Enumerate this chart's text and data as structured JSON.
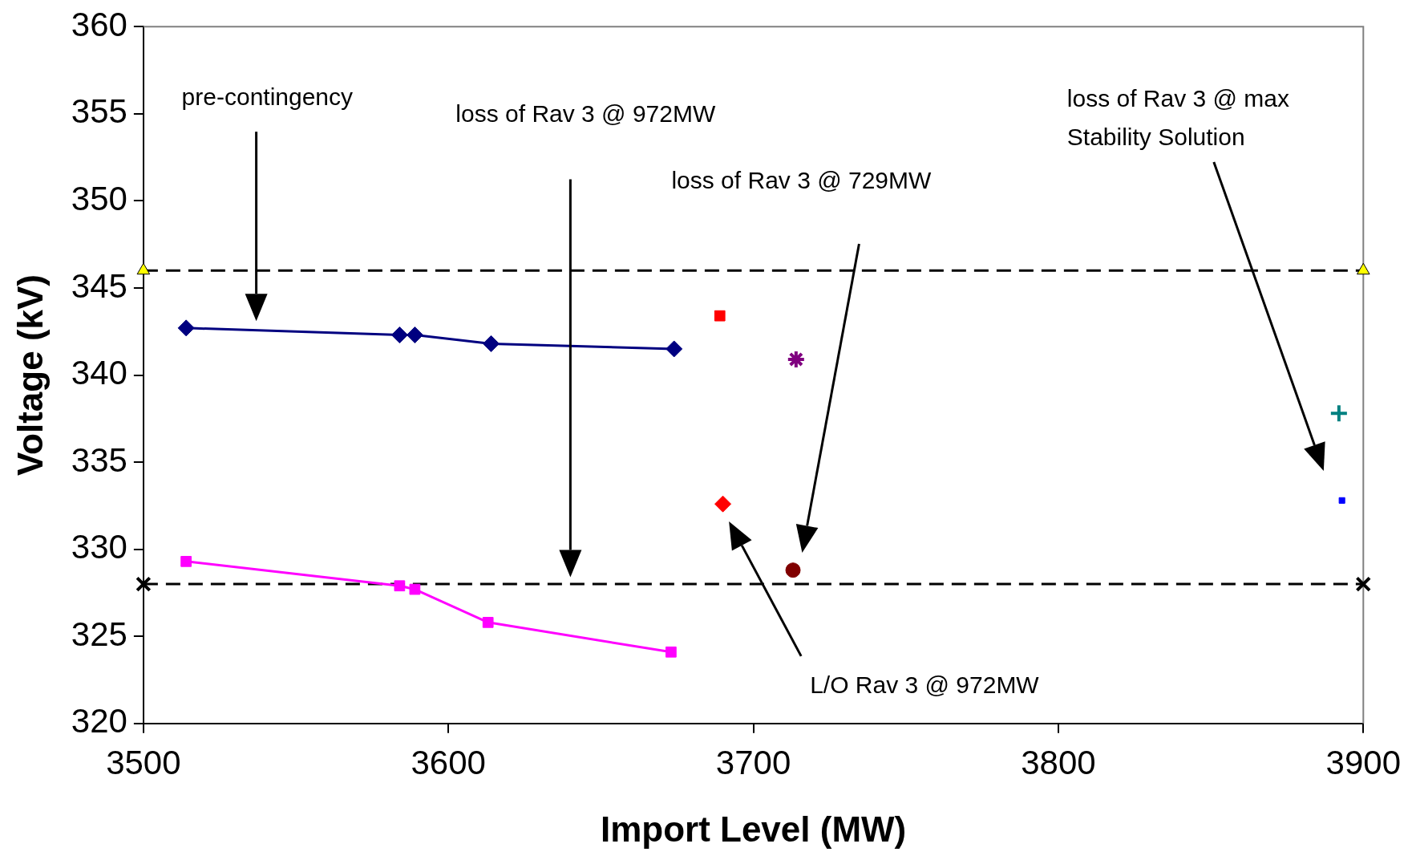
{
  "chart_data": {
    "type": "scatter",
    "xlabel": "Import Level (MW)",
    "ylabel": "Voltage (kV)",
    "xlim": [
      3500,
      3900
    ],
    "xticks": [
      3500,
      3600,
      3700,
      3800,
      3900
    ],
    "ylim": [
      320,
      360
    ],
    "yticks": [
      320,
      325,
      330,
      335,
      340,
      345,
      350,
      355,
      360
    ],
    "grid": false,
    "legend": false,
    "series": [
      {
        "type": "line",
        "color": "#000080",
        "marker": "diamond",
        "x": [
          3514,
          3584,
          3589,
          3614,
          3674
        ],
        "values": [
          342.7,
          342.3,
          342.3,
          341.8,
          341.5
        ]
      },
      {
        "type": "line",
        "color": "#ff00ff",
        "marker": "square",
        "x": [
          3514,
          3584,
          3589,
          3613,
          3673
        ],
        "values": [
          329.3,
          327.9,
          327.7,
          325.8,
          324.1
        ]
      },
      {
        "type": "scatter",
        "color": "#ff0000",
        "marker": "square",
        "x": [
          3689
        ],
        "values": [
          343.4
        ]
      },
      {
        "type": "scatter",
        "color": "#800080",
        "marker": "cross",
        "x": [
          3714
        ],
        "values": [
          340.9
        ]
      },
      {
        "type": "scatter",
        "color": "#ff0000",
        "marker": "diamond",
        "x": [
          3690
        ],
        "values": [
          332.6
        ]
      },
      {
        "type": "scatter",
        "color": "#800000",
        "marker": "circle",
        "x": [
          3713
        ],
        "values": [
          328.8
        ]
      },
      {
        "type": "scatter",
        "color": "#008080",
        "marker": "cross",
        "x": [
          3892
        ],
        "values": [
          337.8
        ]
      },
      {
        "type": "scatter",
        "color": "#0000ff",
        "marker": "square",
        "x": [
          3893
        ],
        "values": [
          332.8
        ]
      },
      {
        "type": "line",
        "color": "#000000",
        "colors": [
          "#ffff00",
          "#ffff00"
        ],
        "marker": "triangle",
        "line_style": "dashed",
        "x": [
          3500,
          3900
        ],
        "values": [
          346,
          346
        ]
      },
      {
        "type": "line",
        "color": "#000000",
        "marker": "cross",
        "line_style": "dashed",
        "x": [
          3500,
          3900
        ],
        "values": [
          328,
          328
        ]
      }
    ],
    "annotations": [
      "pre-contingency",
      "loss of Rav 3 @ 972MW",
      "loss of Rav 3 @ 729MW",
      "loss of Rav 3 @ max\nStability Solution",
      "L/O Rav 3 @ 972MW"
    ]
  }
}
